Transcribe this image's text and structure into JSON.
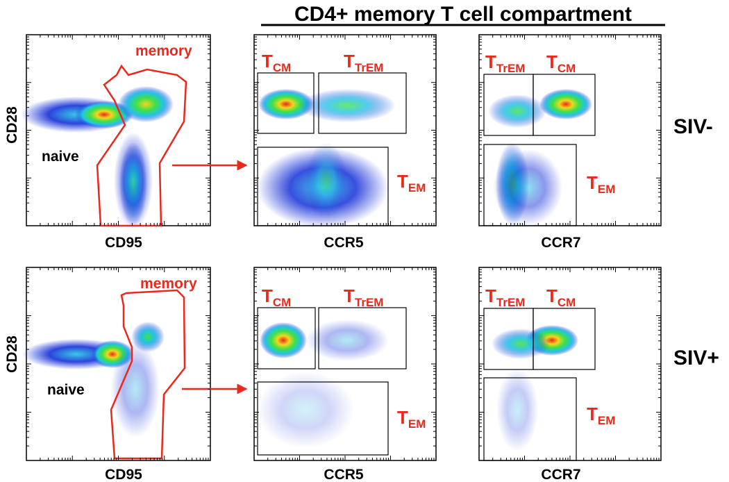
{
  "title": "CD4+ memory T cell compartment",
  "rows": [
    {
      "label": "SIV-",
      "panels": [
        {
          "xlabel": "CD95",
          "ylabel": "CD28",
          "gate_labels": {
            "memory": "memory",
            "naive": "naive"
          }
        },
        {
          "xlabel": "CCR5",
          "gate_labels": {
            "a_main": "T",
            "a_sub": "CM",
            "b_main": "T",
            "b_sub": "TrEM",
            "c_main": "T",
            "c_sub": "EM"
          }
        },
        {
          "xlabel": "CCR7",
          "gate_labels": {
            "a_main": "T",
            "a_sub": "TrEM",
            "b_main": "T",
            "b_sub": "CM",
            "c_main": "T",
            "c_sub": "EM"
          }
        }
      ]
    },
    {
      "label": "SIV+",
      "panels": [
        {
          "xlabel": "CD95",
          "ylabel": "CD28",
          "gate_labels": {
            "memory": "memory",
            "naive": "naive"
          }
        },
        {
          "xlabel": "CCR5",
          "gate_labels": {
            "a_main": "T",
            "a_sub": "CM",
            "b_main": "T",
            "b_sub": "TrEM",
            "c_main": "T",
            "c_sub": "EM"
          }
        },
        {
          "xlabel": "CCR7",
          "gate_labels": {
            "a_main": "T",
            "a_sub": "TrEM",
            "b_main": "T",
            "b_sub": "CM",
            "c_main": "T",
            "c_sub": "EM"
          }
        }
      ]
    }
  ],
  "colors": {
    "gate_red": "#e8291c",
    "density_low": "#1530d8",
    "density_mid": "#22c3e6",
    "density_midhigh": "#3ee04a",
    "density_high": "#f3d61c",
    "density_max": "#e8291c"
  }
}
